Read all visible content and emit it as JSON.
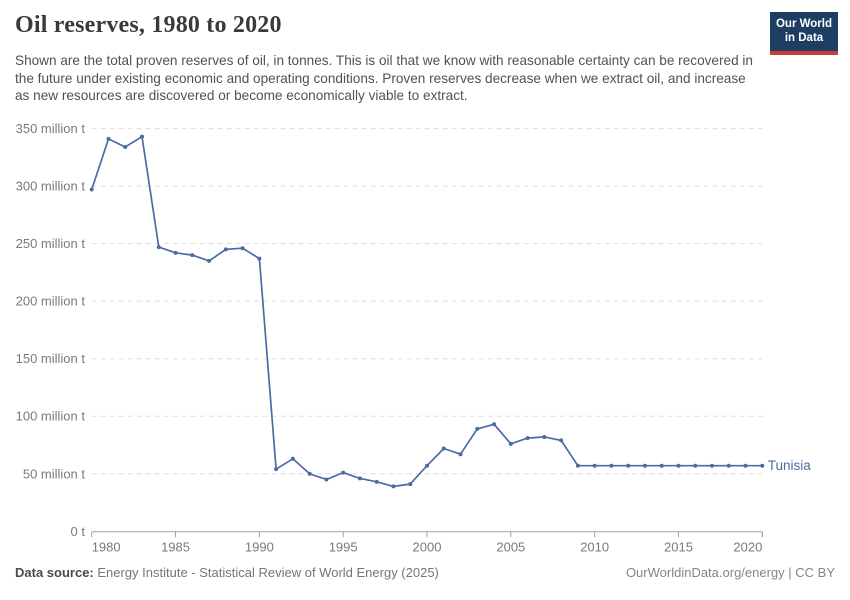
{
  "header": {
    "title": "Oil reserves, 1980 to 2020",
    "logo": {
      "line1": "Our World",
      "line2": "in Data",
      "bg_color": "#1d3d63",
      "bar_color": "#cc3b3b"
    }
  },
  "subtitle": "Shown are the total proven reserves of oil, in tonnes. This is oil that we know with reasonable certainty can be recovered in the future under existing economic and operating conditions. Proven reserves decrease when we extract oil, and increase as new resources are discovered or become economically viable to extract.",
  "chart_data": {
    "type": "line",
    "title": "Oil reserves, 1980 to 2020",
    "unit": "million t",
    "xlim": [
      1980,
      2020
    ],
    "ylim": [
      0,
      350
    ],
    "grid": "horizontal-dashed",
    "legend_position": "end-of-line-label",
    "x_ticks": [
      1980,
      1985,
      1990,
      1995,
      2000,
      2005,
      2010,
      2015,
      2020
    ],
    "y_ticks": [
      {
        "value": 0,
        "label": "0 t"
      },
      {
        "value": 50,
        "label": "50 million t"
      },
      {
        "value": 100,
        "label": "100 million t"
      },
      {
        "value": 150,
        "label": "150 million t"
      },
      {
        "value": 200,
        "label": "200 million t"
      },
      {
        "value": 250,
        "label": "250 million t"
      },
      {
        "value": 300,
        "label": "300 million t"
      },
      {
        "value": 350,
        "label": "350 million t"
      }
    ],
    "series": [
      {
        "name": "Tunisia",
        "color": "#4c6ba3",
        "x": [
          1980,
          1981,
          1982,
          1983,
          1984,
          1985,
          1986,
          1987,
          1988,
          1989,
          1990,
          1991,
          1992,
          1993,
          1994,
          1995,
          1996,
          1997,
          1998,
          1999,
          2000,
          2001,
          2002,
          2003,
          2004,
          2005,
          2006,
          2007,
          2008,
          2009,
          2010,
          2011,
          2012,
          2013,
          2014,
          2015,
          2016,
          2017,
          2018,
          2019,
          2020
        ],
        "values": [
          297,
          341,
          334,
          343,
          247,
          242,
          240,
          235,
          245,
          246,
          237,
          54,
          63,
          50,
          45,
          51,
          46,
          43,
          39,
          41,
          57,
          72,
          67,
          89,
          93,
          76,
          81,
          82,
          79,
          57,
          57,
          57,
          57,
          57,
          57,
          57,
          57,
          57,
          57,
          57,
          57
        ]
      }
    ]
  },
  "footer": {
    "datasource_label": "Data source:",
    "datasource_value": " Energy Institute - Statistical Review of World Energy (2025)",
    "right_text": "OurWorldinData.org/energy | CC BY"
  }
}
